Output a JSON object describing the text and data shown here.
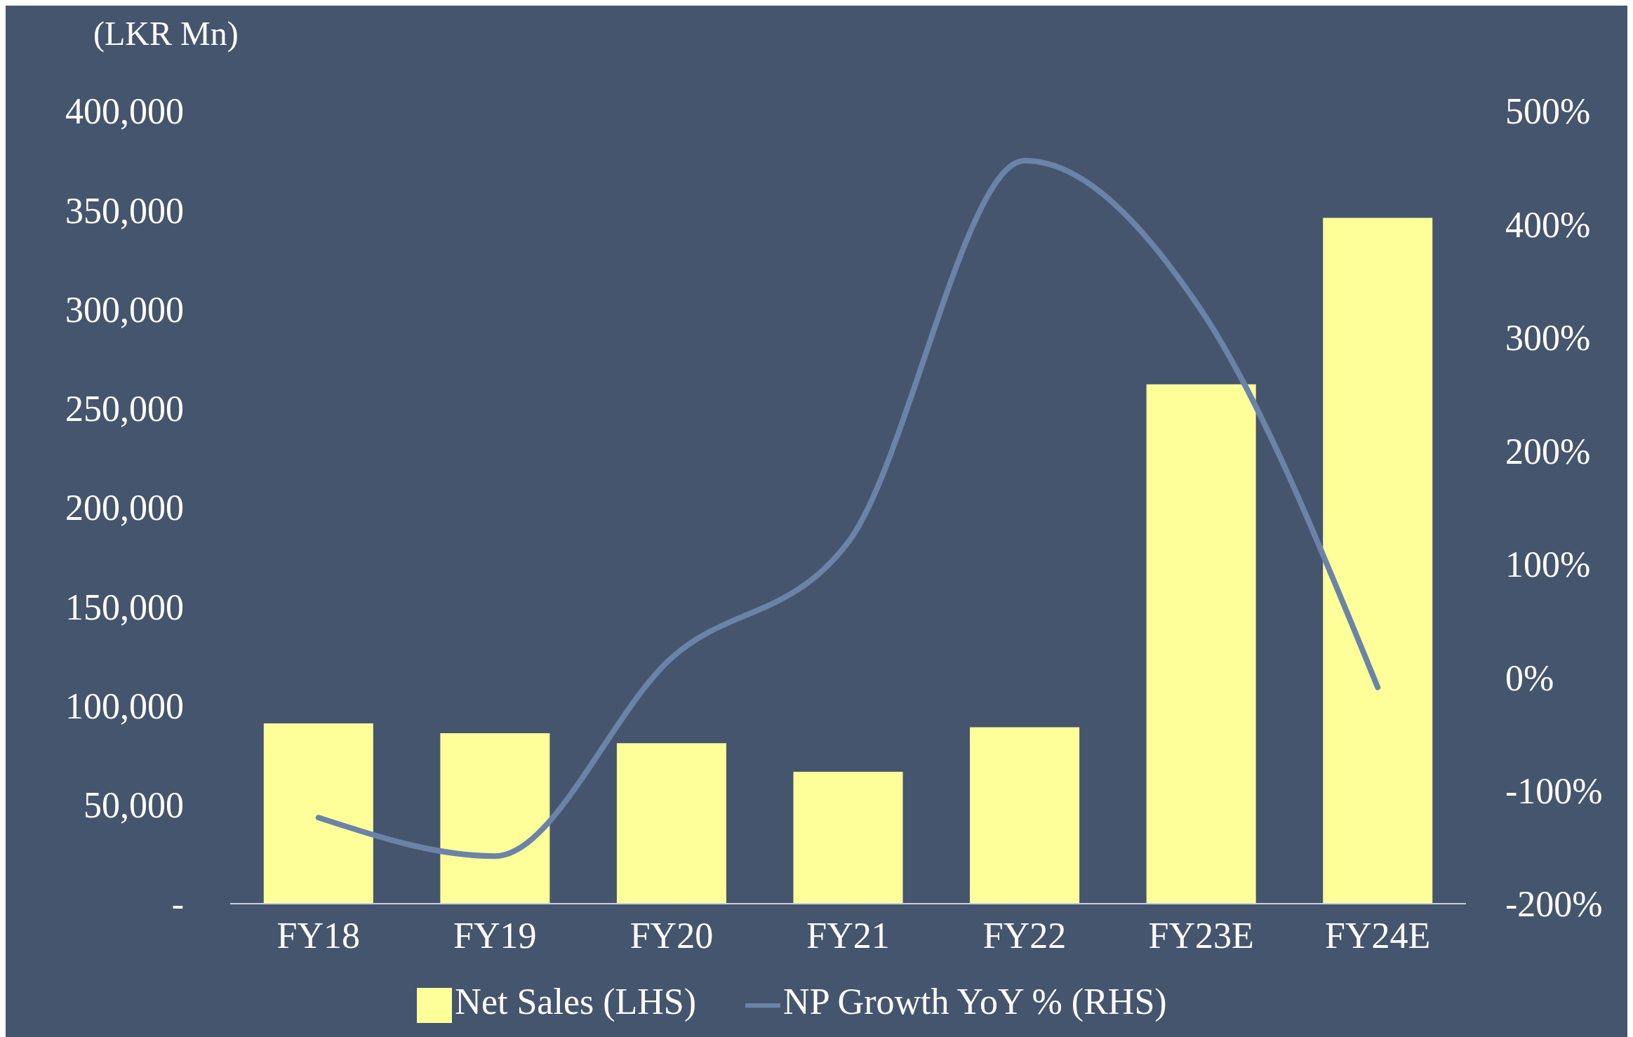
{
  "chart_data": {
    "type": "bar",
    "ylabel": "(LKR Mn)",
    "categories": [
      "FY18",
      "FY19",
      "FY20",
      "FY21",
      "FY22",
      "FY23E",
      "FY24E"
    ],
    "series": [
      {
        "name": "Net Sales (LHS)",
        "color": "#ffff99",
        "values": [
          91000,
          86000,
          81000,
          66500,
          89000,
          262000,
          346000
        ]
      },
      {
        "name": "NP Growth YoY % (RHS)",
        "type": "line",
        "axis": "y2",
        "color": "#6c83a8",
        "values": [
          -124,
          -158,
          17,
          119,
          456,
          324,
          -9
        ]
      }
    ],
    "ylim": [
      0,
      400000
    ],
    "yticks": [
      {
        "value": 0,
        "label": "-"
      },
      {
        "value": 50000,
        "label": "50,000"
      },
      {
        "value": 100000,
        "label": "100,000"
      },
      {
        "value": 150000,
        "label": "150,000"
      },
      {
        "value": 200000,
        "label": "200,000"
      },
      {
        "value": 250000,
        "label": "250,000"
      },
      {
        "value": 300000,
        "label": "300,000"
      },
      {
        "value": 350000,
        "label": "350,000"
      },
      {
        "value": 400000,
        "label": "400,000"
      }
    ],
    "y2lim": [
      -200,
      500
    ],
    "y2ticks": [
      {
        "value": -200,
        "label": "-200%"
      },
      {
        "value": -100,
        "label": "-100%"
      },
      {
        "value": 0,
        "label": "0%"
      },
      {
        "value": 100,
        "label": "100%"
      },
      {
        "value": 200,
        "label": "200%"
      },
      {
        "value": 300,
        "label": "300%"
      },
      {
        "value": 400,
        "label": "400%"
      },
      {
        "value": 500,
        "label": "500%"
      }
    ],
    "grid": false,
    "legend": "bottom",
    "marker": "none",
    "line_style": "solid"
  }
}
